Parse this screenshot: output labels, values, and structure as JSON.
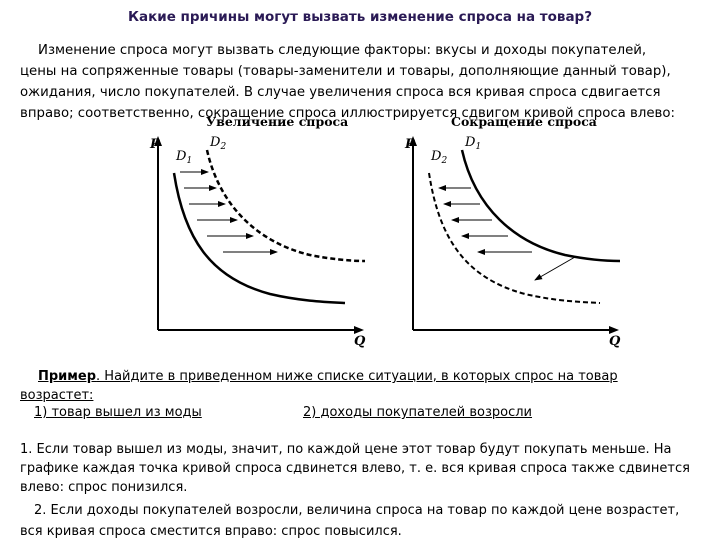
{
  "title": "Какие причины могут вызвать изменение спроса на товар?",
  "intro": "Изменение спроса могут вызвать следующие факторы: вкусы и доходы покупателей, цены на сопряженные товары (товары-заменители и товары, дополняющие данный товар), ожидания, число покупателей. В случае увеличения спроса вся кривая спроса сдвигается вправо; соответственно, сокращение спроса иллюстрируется сдвигом кривой спроса влево:",
  "graphs": {
    "left": {
      "title": "Увеличение спроса",
      "y_axis": "P",
      "x_axis": "Q",
      "curve_a": "D",
      "curve_a_sub": "1",
      "curve_b": "D",
      "curve_b_sub": "2"
    },
    "right": {
      "title": "Сокращение спроса",
      "y_axis": "P",
      "x_axis": "Q",
      "curve_a": "D",
      "curve_a_sub": "2",
      "curve_b": "D",
      "curve_b_sub": "1"
    }
  },
  "example": {
    "label": "Пример",
    "question": ". Найдите в приведенном ниже списке ситуации, в которых спрос на товар",
    "question_cont": "возрастет:",
    "option1": "1) товар вышел из моды",
    "option2": "2) доходы покупателей возросли"
  },
  "answer": {
    "p1": "1. Если товар вышел из моды, значит, по каждой цене этот товар будут покупать меньше. На графике каждая точка кривой спроса сдвинется влево, т. е. вся кривая спроса также сдвинется влево: спрос понизился.",
    "p2": "2. Если доходы покупателей возросли, величина спроса на товар по каждой цене возрастет, вся кривая спроса сместится вправо: спрос повысился."
  }
}
